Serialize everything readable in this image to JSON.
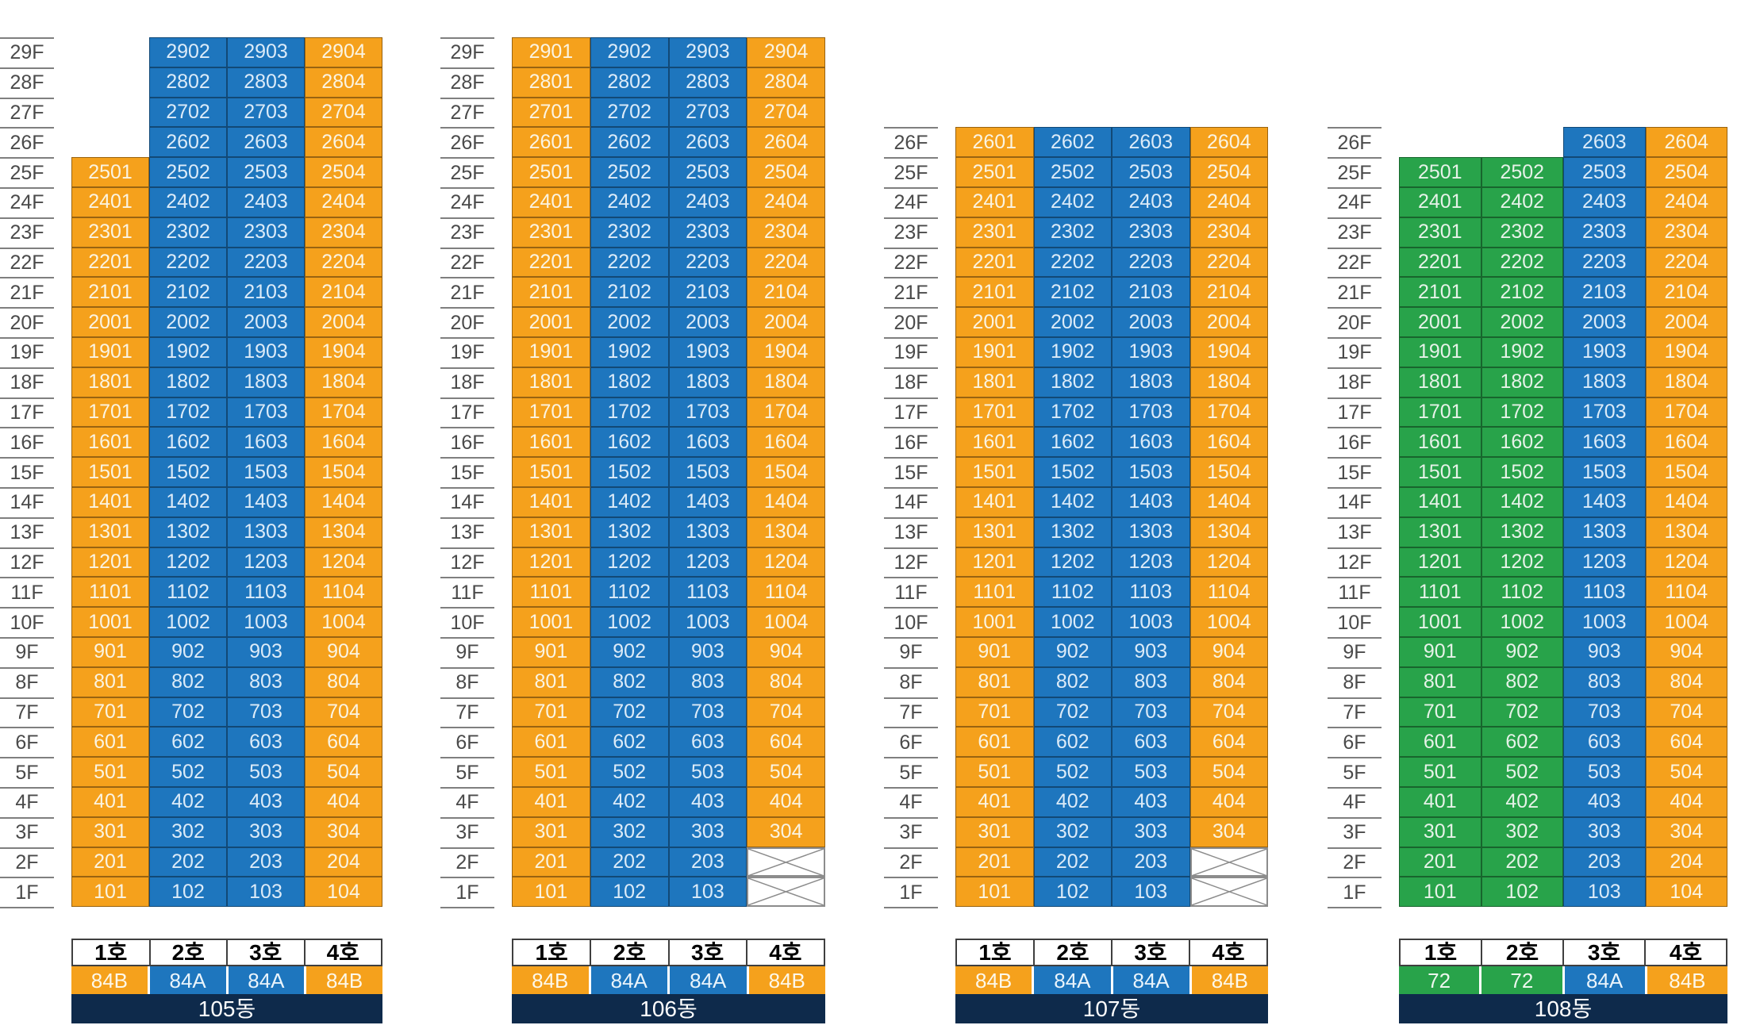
{
  "palette": {
    "orange": "#F5A11C",
    "blue": "#1E76BE",
    "green": "#28A34A",
    "navy": "#0E2A4B",
    "white": "#FFFFFF",
    "floor_label_text": "#4A4A4A",
    "grid_line": "#7F7F7F",
    "x_mark": "#8C8C8C",
    "header_border": "#3F3F3F"
  },
  "unit_types": {
    "84B": "orange",
    "84A": "blue",
    "72": "green"
  },
  "buildings": [
    {
      "id": "105",
      "name": "105동",
      "column_headers": [
        "1호",
        "2호",
        "3호",
        "4호"
      ],
      "column_types": [
        "84B",
        "84A",
        "84A",
        "84B"
      ],
      "column_colors": [
        "orange",
        "blue",
        "blue",
        "orange"
      ],
      "rows": [
        {
          "floor": "29F",
          "cells": [
            null,
            "2902",
            "2903",
            "2904"
          ]
        },
        {
          "floor": "28F",
          "cells": [
            null,
            "2802",
            "2803",
            "2804"
          ]
        },
        {
          "floor": "27F",
          "cells": [
            null,
            "2702",
            "2703",
            "2704"
          ]
        },
        {
          "floor": "26F",
          "cells": [
            null,
            "2602",
            "2603",
            "2604"
          ]
        },
        {
          "floor": "25F",
          "cells": [
            "2501",
            "2502",
            "2503",
            "2504"
          ]
        },
        {
          "floor": "24F",
          "cells": [
            "2401",
            "2402",
            "2403",
            "2404"
          ]
        },
        {
          "floor": "23F",
          "cells": [
            "2301",
            "2302",
            "2303",
            "2304"
          ]
        },
        {
          "floor": "22F",
          "cells": [
            "2201",
            "2202",
            "2203",
            "2204"
          ]
        },
        {
          "floor": "21F",
          "cells": [
            "2101",
            "2102",
            "2103",
            "2104"
          ]
        },
        {
          "floor": "20F",
          "cells": [
            "2001",
            "2002",
            "2003",
            "2004"
          ]
        },
        {
          "floor": "19F",
          "cells": [
            "1901",
            "1902",
            "1903",
            "1904"
          ]
        },
        {
          "floor": "18F",
          "cells": [
            "1801",
            "1802",
            "1803",
            "1804"
          ]
        },
        {
          "floor": "17F",
          "cells": [
            "1701",
            "1702",
            "1703",
            "1704"
          ]
        },
        {
          "floor": "16F",
          "cells": [
            "1601",
            "1602",
            "1603",
            "1604"
          ]
        },
        {
          "floor": "15F",
          "cells": [
            "1501",
            "1502",
            "1503",
            "1504"
          ]
        },
        {
          "floor": "14F",
          "cells": [
            "1401",
            "1402",
            "1403",
            "1404"
          ]
        },
        {
          "floor": "13F",
          "cells": [
            "1301",
            "1302",
            "1303",
            "1304"
          ]
        },
        {
          "floor": "12F",
          "cells": [
            "1201",
            "1202",
            "1203",
            "1204"
          ]
        },
        {
          "floor": "11F",
          "cells": [
            "1101",
            "1102",
            "1103",
            "1104"
          ]
        },
        {
          "floor": "10F",
          "cells": [
            "1001",
            "1002",
            "1003",
            "1004"
          ]
        },
        {
          "floor": "9F",
          "cells": [
            "901",
            "902",
            "903",
            "904"
          ]
        },
        {
          "floor": "8F",
          "cells": [
            "801",
            "802",
            "803",
            "804"
          ]
        },
        {
          "floor": "7F",
          "cells": [
            "701",
            "702",
            "703",
            "704"
          ]
        },
        {
          "floor": "6F",
          "cells": [
            "601",
            "602",
            "603",
            "604"
          ]
        },
        {
          "floor": "5F",
          "cells": [
            "501",
            "502",
            "503",
            "504"
          ]
        },
        {
          "floor": "4F",
          "cells": [
            "401",
            "402",
            "403",
            "404"
          ]
        },
        {
          "floor": "3F",
          "cells": [
            "301",
            "302",
            "303",
            "304"
          ]
        },
        {
          "floor": "2F",
          "cells": [
            "201",
            "202",
            "203",
            "204"
          ]
        },
        {
          "floor": "1F",
          "cells": [
            "101",
            "102",
            "103",
            "104"
          ]
        }
      ]
    },
    {
      "id": "106",
      "name": "106동",
      "column_headers": [
        "1호",
        "2호",
        "3호",
        "4호"
      ],
      "column_types": [
        "84B",
        "84A",
        "84A",
        "84B"
      ],
      "column_colors": [
        "orange",
        "blue",
        "blue",
        "orange"
      ],
      "rows": [
        {
          "floor": "29F",
          "cells": [
            "2901",
            "2902",
            "2903",
            "2904"
          ]
        },
        {
          "floor": "28F",
          "cells": [
            "2801",
            "2802",
            "2803",
            "2804"
          ]
        },
        {
          "floor": "27F",
          "cells": [
            "2701",
            "2702",
            "2703",
            "2704"
          ]
        },
        {
          "floor": "26F",
          "cells": [
            "2601",
            "2602",
            "2603",
            "2604"
          ]
        },
        {
          "floor": "25F",
          "cells": [
            "2501",
            "2502",
            "2503",
            "2504"
          ]
        },
        {
          "floor": "24F",
          "cells": [
            "2401",
            "2402",
            "2403",
            "2404"
          ]
        },
        {
          "floor": "23F",
          "cells": [
            "2301",
            "2302",
            "2303",
            "2304"
          ]
        },
        {
          "floor": "22F",
          "cells": [
            "2201",
            "2202",
            "2203",
            "2204"
          ]
        },
        {
          "floor": "21F",
          "cells": [
            "2101",
            "2102",
            "2103",
            "2104"
          ]
        },
        {
          "floor": "20F",
          "cells": [
            "2001",
            "2002",
            "2003",
            "2004"
          ]
        },
        {
          "floor": "19F",
          "cells": [
            "1901",
            "1902",
            "1903",
            "1904"
          ]
        },
        {
          "floor": "18F",
          "cells": [
            "1801",
            "1802",
            "1803",
            "1804"
          ]
        },
        {
          "floor": "17F",
          "cells": [
            "1701",
            "1702",
            "1703",
            "1704"
          ]
        },
        {
          "floor": "16F",
          "cells": [
            "1601",
            "1602",
            "1603",
            "1604"
          ]
        },
        {
          "floor": "15F",
          "cells": [
            "1501",
            "1502",
            "1503",
            "1504"
          ]
        },
        {
          "floor": "14F",
          "cells": [
            "1401",
            "1402",
            "1403",
            "1404"
          ]
        },
        {
          "floor": "13F",
          "cells": [
            "1301",
            "1302",
            "1303",
            "1304"
          ]
        },
        {
          "floor": "12F",
          "cells": [
            "1201",
            "1202",
            "1203",
            "1204"
          ]
        },
        {
          "floor": "11F",
          "cells": [
            "1101",
            "1102",
            "1103",
            "1104"
          ]
        },
        {
          "floor": "10F",
          "cells": [
            "1001",
            "1002",
            "1003",
            "1004"
          ]
        },
        {
          "floor": "9F",
          "cells": [
            "901",
            "902",
            "903",
            "904"
          ]
        },
        {
          "floor": "8F",
          "cells": [
            "801",
            "802",
            "803",
            "804"
          ]
        },
        {
          "floor": "7F",
          "cells": [
            "701",
            "702",
            "703",
            "704"
          ]
        },
        {
          "floor": "6F",
          "cells": [
            "601",
            "602",
            "603",
            "604"
          ]
        },
        {
          "floor": "5F",
          "cells": [
            "501",
            "502",
            "503",
            "504"
          ]
        },
        {
          "floor": "4F",
          "cells": [
            "401",
            "402",
            "403",
            "404"
          ]
        },
        {
          "floor": "3F",
          "cells": [
            "301",
            "302",
            "303",
            "304"
          ]
        },
        {
          "floor": "2F",
          "cells": [
            "201",
            "202",
            "203",
            "X"
          ]
        },
        {
          "floor": "1F",
          "cells": [
            "101",
            "102",
            "103",
            "X"
          ]
        }
      ]
    },
    {
      "id": "107",
      "name": "107동",
      "column_headers": [
        "1호",
        "2호",
        "3호",
        "4호"
      ],
      "column_types": [
        "84B",
        "84A",
        "84A",
        "84B"
      ],
      "column_colors": [
        "orange",
        "blue",
        "blue",
        "orange"
      ],
      "rows": [
        {
          "floor": "26F",
          "cells": [
            "2601",
            "2602",
            "2603",
            "2604"
          ]
        },
        {
          "floor": "25F",
          "cells": [
            "2501",
            "2502",
            "2503",
            "2504"
          ]
        },
        {
          "floor": "24F",
          "cells": [
            "2401",
            "2402",
            "2403",
            "2404"
          ]
        },
        {
          "floor": "23F",
          "cells": [
            "2301",
            "2302",
            "2303",
            "2304"
          ]
        },
        {
          "floor": "22F",
          "cells": [
            "2201",
            "2202",
            "2203",
            "2204"
          ]
        },
        {
          "floor": "21F",
          "cells": [
            "2101",
            "2102",
            "2103",
            "2104"
          ]
        },
        {
          "floor": "20F",
          "cells": [
            "2001",
            "2002",
            "2003",
            "2004"
          ]
        },
        {
          "floor": "19F",
          "cells": [
            "1901",
            "1902",
            "1903",
            "1904"
          ]
        },
        {
          "floor": "18F",
          "cells": [
            "1801",
            "1802",
            "1803",
            "1804"
          ]
        },
        {
          "floor": "17F",
          "cells": [
            "1701",
            "1702",
            "1703",
            "1704"
          ]
        },
        {
          "floor": "16F",
          "cells": [
            "1601",
            "1602",
            "1603",
            "1604"
          ]
        },
        {
          "floor": "15F",
          "cells": [
            "1501",
            "1502",
            "1503",
            "1504"
          ]
        },
        {
          "floor": "14F",
          "cells": [
            "1401",
            "1402",
            "1403",
            "1404"
          ]
        },
        {
          "floor": "13F",
          "cells": [
            "1301",
            "1302",
            "1303",
            "1304"
          ]
        },
        {
          "floor": "12F",
          "cells": [
            "1201",
            "1202",
            "1203",
            "1204"
          ]
        },
        {
          "floor": "11F",
          "cells": [
            "1101",
            "1102",
            "1103",
            "1104"
          ]
        },
        {
          "floor": "10F",
          "cells": [
            "1001",
            "1002",
            "1003",
            "1004"
          ]
        },
        {
          "floor": "9F",
          "cells": [
            "901",
            "902",
            "903",
            "904"
          ]
        },
        {
          "floor": "8F",
          "cells": [
            "801",
            "802",
            "803",
            "804"
          ]
        },
        {
          "floor": "7F",
          "cells": [
            "701",
            "702",
            "703",
            "704"
          ]
        },
        {
          "floor": "6F",
          "cells": [
            "601",
            "602",
            "603",
            "604"
          ]
        },
        {
          "floor": "5F",
          "cells": [
            "501",
            "502",
            "503",
            "504"
          ]
        },
        {
          "floor": "4F",
          "cells": [
            "401",
            "402",
            "403",
            "404"
          ]
        },
        {
          "floor": "3F",
          "cells": [
            "301",
            "302",
            "303",
            "304"
          ]
        },
        {
          "floor": "2F",
          "cells": [
            "201",
            "202",
            "203",
            "X"
          ]
        },
        {
          "floor": "1F",
          "cells": [
            "101",
            "102",
            "103",
            "X"
          ]
        }
      ]
    },
    {
      "id": "108",
      "name": "108동",
      "column_headers": [
        "1호",
        "2호",
        "3호",
        "4호"
      ],
      "column_types": [
        "72",
        "72",
        "84A",
        "84B"
      ],
      "column_colors": [
        "green",
        "green",
        "blue",
        "orange"
      ],
      "rows": [
        {
          "floor": "26F",
          "cells": [
            null,
            null,
            "2603",
            "2604"
          ]
        },
        {
          "floor": "25F",
          "cells": [
            "2501",
            "2502",
            "2503",
            "2504"
          ]
        },
        {
          "floor": "24F",
          "cells": [
            "2401",
            "2402",
            "2403",
            "2404"
          ]
        },
        {
          "floor": "23F",
          "cells": [
            "2301",
            "2302",
            "2303",
            "2304"
          ]
        },
        {
          "floor": "22F",
          "cells": [
            "2201",
            "2202",
            "2203",
            "2204"
          ]
        },
        {
          "floor": "21F",
          "cells": [
            "2101",
            "2102",
            "2103",
            "2104"
          ]
        },
        {
          "floor": "20F",
          "cells": [
            "2001",
            "2002",
            "2003",
            "2004"
          ]
        },
        {
          "floor": "19F",
          "cells": [
            "1901",
            "1902",
            "1903",
            "1904"
          ]
        },
        {
          "floor": "18F",
          "cells": [
            "1801",
            "1802",
            "1803",
            "1804"
          ]
        },
        {
          "floor": "17F",
          "cells": [
            "1701",
            "1702",
            "1703",
            "1704"
          ]
        },
        {
          "floor": "16F",
          "cells": [
            "1601",
            "1602",
            "1603",
            "1604"
          ]
        },
        {
          "floor": "15F",
          "cells": [
            "1501",
            "1502",
            "1503",
            "1504"
          ]
        },
        {
          "floor": "14F",
          "cells": [
            "1401",
            "1402",
            "1403",
            "1404"
          ]
        },
        {
          "floor": "13F",
          "cells": [
            "1301",
            "1302",
            "1303",
            "1304"
          ]
        },
        {
          "floor": "12F",
          "cells": [
            "1201",
            "1202",
            "1203",
            "1204"
          ]
        },
        {
          "floor": "11F",
          "cells": [
            "1101",
            "1102",
            "1103",
            "1104"
          ]
        },
        {
          "floor": "10F",
          "cells": [
            "1001",
            "1002",
            "1003",
            "1004"
          ]
        },
        {
          "floor": "9F",
          "cells": [
            "901",
            "902",
            "903",
            "904"
          ]
        },
        {
          "floor": "8F",
          "cells": [
            "801",
            "802",
            "803",
            "804"
          ]
        },
        {
          "floor": "7F",
          "cells": [
            "701",
            "702",
            "703",
            "704"
          ]
        },
        {
          "floor": "6F",
          "cells": [
            "601",
            "602",
            "603",
            "604"
          ]
        },
        {
          "floor": "5F",
          "cells": [
            "501",
            "502",
            "503",
            "504"
          ]
        },
        {
          "floor": "4F",
          "cells": [
            "401",
            "402",
            "403",
            "404"
          ]
        },
        {
          "floor": "3F",
          "cells": [
            "301",
            "302",
            "303",
            "304"
          ]
        },
        {
          "floor": "2F",
          "cells": [
            "201",
            "202",
            "203",
            "204"
          ]
        },
        {
          "floor": "1F",
          "cells": [
            "101",
            "102",
            "103",
            "104"
          ]
        }
      ]
    }
  ]
}
